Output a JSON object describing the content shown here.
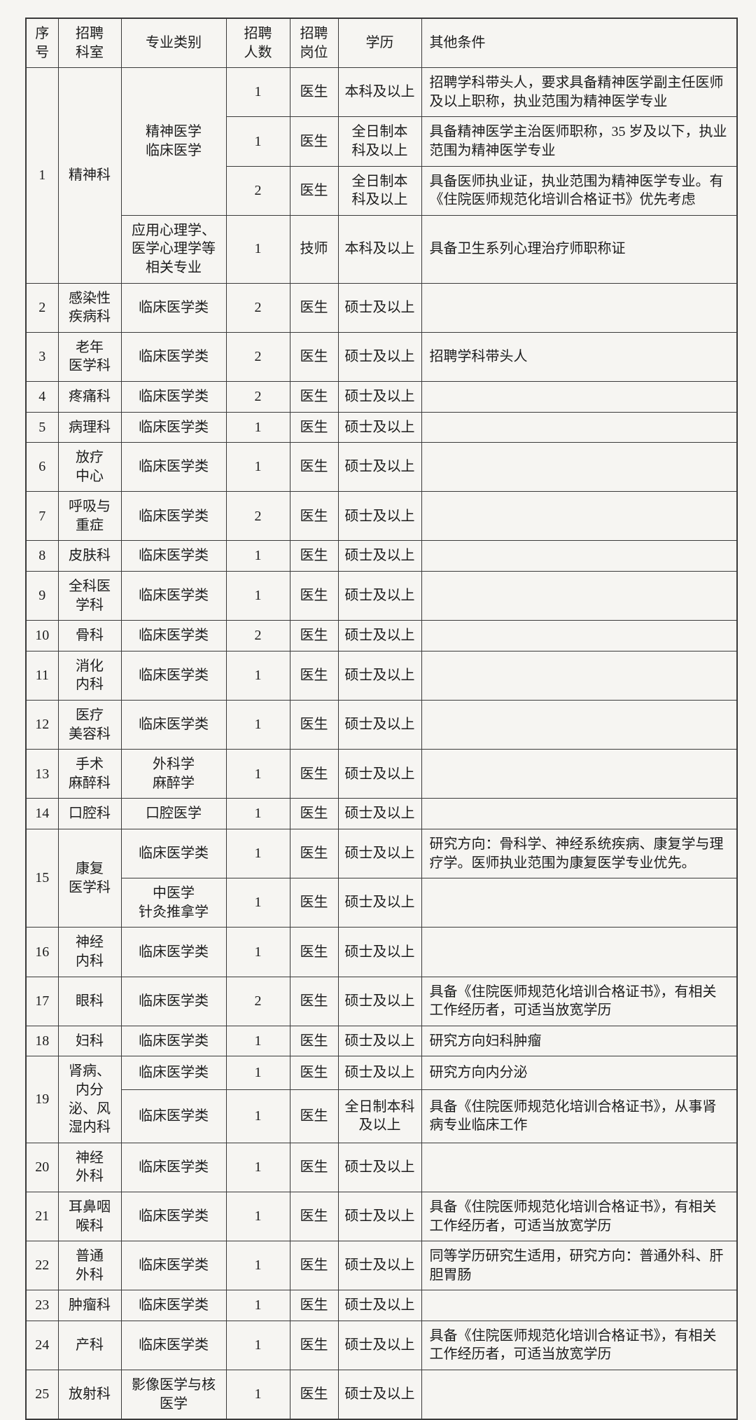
{
  "table": {
    "headers": [
      "序号",
      "招聘\n科室",
      "专业类别",
      "招聘\n人数",
      "招聘\n岗位",
      "学历",
      "其他条件"
    ],
    "rows": [
      [
        {
          "t": "1",
          "rs": 4
        },
        {
          "t": "精神科",
          "rs": 4
        },
        {
          "t": "精神医学\n临床医学",
          "rs": 3
        },
        {
          "t": "1"
        },
        {
          "t": "医生"
        },
        {
          "t": "本科及以上"
        },
        {
          "t": "招聘学科带头人，要求具备精神医学副主任医师及以上职称，执业范围为精神医学专业",
          "a": "left"
        }
      ],
      [
        {
          "t": "1"
        },
        {
          "t": "医生"
        },
        {
          "t": "全日制本\n科及以上"
        },
        {
          "t": "具备精神医学主治医师职称，35 岁及以下，执业范围为精神医学专业",
          "a": "left"
        }
      ],
      [
        {
          "t": "2"
        },
        {
          "t": "医生"
        },
        {
          "t": "全日制本\n科及以上"
        },
        {
          "t": "具备医师执业证，执业范围为精神医学专业。有《住院医师规范化培训合格证书》优先考虑",
          "a": "left"
        }
      ],
      [
        {
          "t": "应用心理学、\n医学心理学等\n相关专业"
        },
        {
          "t": "1"
        },
        {
          "t": "技师"
        },
        {
          "t": "本科及以上"
        },
        {
          "t": "具备卫生系列心理治疗师职称证",
          "a": "left"
        }
      ],
      [
        {
          "t": "2"
        },
        {
          "t": "感染性\n疾病科"
        },
        {
          "t": "临床医学类"
        },
        {
          "t": "2"
        },
        {
          "t": "医生"
        },
        {
          "t": "硕士及以上"
        },
        {
          "t": "",
          "a": "left"
        }
      ],
      [
        {
          "t": "3"
        },
        {
          "t": "老年\n医学科"
        },
        {
          "t": "临床医学类"
        },
        {
          "t": "2"
        },
        {
          "t": "医生"
        },
        {
          "t": "硕士及以上"
        },
        {
          "t": "招聘学科带头人",
          "a": "left"
        }
      ],
      [
        {
          "t": "4"
        },
        {
          "t": "疼痛科"
        },
        {
          "t": "临床医学类"
        },
        {
          "t": "2"
        },
        {
          "t": "医生"
        },
        {
          "t": "硕士及以上"
        },
        {
          "t": "",
          "a": "left"
        }
      ],
      [
        {
          "t": "5"
        },
        {
          "t": "病理科"
        },
        {
          "t": "临床医学类"
        },
        {
          "t": "1"
        },
        {
          "t": "医生"
        },
        {
          "t": "硕士及以上"
        },
        {
          "t": "",
          "a": "left"
        }
      ],
      [
        {
          "t": "6"
        },
        {
          "t": "放疗\n中心"
        },
        {
          "t": "临床医学类"
        },
        {
          "t": "1"
        },
        {
          "t": "医生"
        },
        {
          "t": "硕士及以上"
        },
        {
          "t": "",
          "a": "left"
        }
      ],
      [
        {
          "t": "7"
        },
        {
          "t": "呼吸与\n重症"
        },
        {
          "t": "临床医学类"
        },
        {
          "t": "2"
        },
        {
          "t": "医生"
        },
        {
          "t": "硕士及以上"
        },
        {
          "t": "",
          "a": "left"
        }
      ],
      [
        {
          "t": "8"
        },
        {
          "t": "皮肤科"
        },
        {
          "t": "临床医学类"
        },
        {
          "t": "1"
        },
        {
          "t": "医生"
        },
        {
          "t": "硕士及以上"
        },
        {
          "t": "",
          "a": "left"
        }
      ],
      [
        {
          "t": "9"
        },
        {
          "t": "全科医\n学科"
        },
        {
          "t": "临床医学类"
        },
        {
          "t": "1"
        },
        {
          "t": "医生"
        },
        {
          "t": "硕士及以上"
        },
        {
          "t": "",
          "a": "left"
        }
      ],
      [
        {
          "t": "10"
        },
        {
          "t": "骨科"
        },
        {
          "t": "临床医学类"
        },
        {
          "t": "2"
        },
        {
          "t": "医生"
        },
        {
          "t": "硕士及以上"
        },
        {
          "t": "",
          "a": "left"
        }
      ],
      [
        {
          "t": "11"
        },
        {
          "t": "消化\n内科"
        },
        {
          "t": "临床医学类"
        },
        {
          "t": "1"
        },
        {
          "t": "医生"
        },
        {
          "t": "硕士及以上"
        },
        {
          "t": "",
          "a": "left"
        }
      ],
      [
        {
          "t": "12"
        },
        {
          "t": "医疗\n美容科"
        },
        {
          "t": "临床医学类"
        },
        {
          "t": "1"
        },
        {
          "t": "医生"
        },
        {
          "t": "硕士及以上"
        },
        {
          "t": "",
          "a": "left"
        }
      ],
      [
        {
          "t": "13"
        },
        {
          "t": "手术\n麻醉科"
        },
        {
          "t": "外科学\n麻醉学"
        },
        {
          "t": "1"
        },
        {
          "t": "医生"
        },
        {
          "t": "硕士及以上"
        },
        {
          "t": "",
          "a": "left"
        }
      ],
      [
        {
          "t": "14"
        },
        {
          "t": "口腔科"
        },
        {
          "t": "口腔医学"
        },
        {
          "t": "1"
        },
        {
          "t": "医生"
        },
        {
          "t": "硕士及以上"
        },
        {
          "t": "",
          "a": "left"
        }
      ],
      [
        {
          "t": "15",
          "rs": 2
        },
        {
          "t": "康复\n医学科",
          "rs": 2
        },
        {
          "t": "临床医学类"
        },
        {
          "t": "1"
        },
        {
          "t": "医生"
        },
        {
          "t": "硕士及以上"
        },
        {
          "t": "研究方向：骨科学、神经系统疾病、康复学与理疗学。医师执业范围为康复医学专业优先。",
          "a": "left"
        }
      ],
      [
        {
          "t": "中医学\n针灸推拿学"
        },
        {
          "t": "1"
        },
        {
          "t": "医生"
        },
        {
          "t": "硕士及以上"
        },
        {
          "t": "",
          "a": "left"
        }
      ],
      [
        {
          "t": "16"
        },
        {
          "t": "神经\n内科"
        },
        {
          "t": "临床医学类"
        },
        {
          "t": "1"
        },
        {
          "t": "医生"
        },
        {
          "t": "硕士及以上"
        },
        {
          "t": "",
          "a": "left"
        }
      ],
      [
        {
          "t": "17"
        },
        {
          "t": "眼科"
        },
        {
          "t": "临床医学类"
        },
        {
          "t": "2"
        },
        {
          "t": "医生"
        },
        {
          "t": "硕士及以上"
        },
        {
          "t": "具备《住院医师规范化培训合格证书》，有相关工作经历者，可适当放宽学历",
          "a": "left"
        }
      ],
      [
        {
          "t": "18"
        },
        {
          "t": "妇科"
        },
        {
          "t": "临床医学类"
        },
        {
          "t": "1"
        },
        {
          "t": "医生"
        },
        {
          "t": "硕士及以上"
        },
        {
          "t": "研究方向妇科肿瘤",
          "a": "left"
        }
      ],
      [
        {
          "t": "19",
          "rs": 2
        },
        {
          "t": "肾病、\n内分\n泌、风\n湿内科",
          "rs": 2
        },
        {
          "t": "临床医学类"
        },
        {
          "t": "1"
        },
        {
          "t": "医生"
        },
        {
          "t": "硕士及以上"
        },
        {
          "t": "研究方向内分泌",
          "a": "left"
        }
      ],
      [
        {
          "t": "临床医学类"
        },
        {
          "t": "1"
        },
        {
          "t": "医生"
        },
        {
          "t": "全日制本科\n及以上"
        },
        {
          "t": "具备《住院医师规范化培训合格证书》，从事肾病专业临床工作",
          "a": "left"
        }
      ],
      [
        {
          "t": "20"
        },
        {
          "t": "神经\n外科"
        },
        {
          "t": "临床医学类"
        },
        {
          "t": "1"
        },
        {
          "t": "医生"
        },
        {
          "t": "硕士及以上"
        },
        {
          "t": "",
          "a": "left"
        }
      ],
      [
        {
          "t": "21"
        },
        {
          "t": "耳鼻咽\n喉科"
        },
        {
          "t": "临床医学类"
        },
        {
          "t": "1"
        },
        {
          "t": "医生"
        },
        {
          "t": "硕士及以上"
        },
        {
          "t": "具备《住院医师规范化培训合格证书》，有相关工作经历者，可适当放宽学历",
          "a": "left"
        }
      ],
      [
        {
          "t": "22"
        },
        {
          "t": "普通\n外科"
        },
        {
          "t": "临床医学类"
        },
        {
          "t": "1"
        },
        {
          "t": "医生"
        },
        {
          "t": "硕士及以上"
        },
        {
          "t": "同等学历研究生适用，研究方向：普通外科、肝胆胃肠",
          "a": "left"
        }
      ],
      [
        {
          "t": "23"
        },
        {
          "t": "肿瘤科"
        },
        {
          "t": "临床医学类"
        },
        {
          "t": "1"
        },
        {
          "t": "医生"
        },
        {
          "t": "硕士及以上"
        },
        {
          "t": "",
          "a": "left"
        }
      ],
      [
        {
          "t": "24"
        },
        {
          "t": "产科"
        },
        {
          "t": "临床医学类"
        },
        {
          "t": "1"
        },
        {
          "t": "医生"
        },
        {
          "t": "硕士及以上"
        },
        {
          "t": "具备《住院医师规范化培训合格证书》，有相关工作经历者，可适当放宽学历",
          "a": "left"
        }
      ],
      [
        {
          "t": "25"
        },
        {
          "t": "放射科"
        },
        {
          "t": "影像医学与核\n医学"
        },
        {
          "t": "1"
        },
        {
          "t": "医生"
        },
        {
          "t": "硕士及以上"
        },
        {
          "t": "",
          "a": "left"
        }
      ]
    ]
  },
  "colors": {
    "page_background": "#f6f5f2",
    "border": "#3a3a3a",
    "text": "#1d1d1d"
  }
}
